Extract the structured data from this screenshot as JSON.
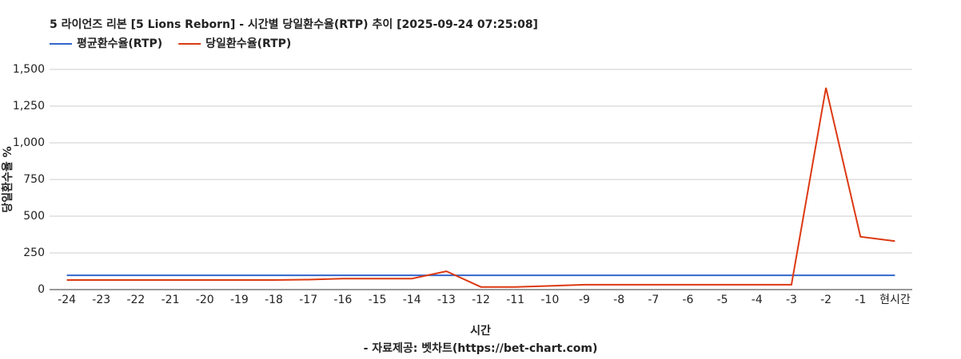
{
  "chart_data": {
    "type": "line",
    "title": "5 라이언즈 리본 [5 Lions Reborn] - 시간별 당일환수율(RTP) 추이 [2025-09-24 07:25:08]",
    "categories": [
      "-24",
      "-23",
      "-22",
      "-21",
      "-20",
      "-19",
      "-18",
      "-17",
      "-16",
      "-15",
      "-14",
      "-13",
      "-12",
      "-11",
      "-10",
      "-9",
      "-8",
      "-7",
      "-6",
      "-5",
      "-4",
      "-3",
      "-2",
      "-1",
      "현시간"
    ],
    "series": [
      {
        "name": "평균환수율(RTP)",
        "color": "#3366cc",
        "values": [
          97,
          97,
          97,
          97,
          97,
          97,
          97,
          97,
          97,
          97,
          97,
          97,
          97,
          97,
          97,
          97,
          97,
          97,
          97,
          97,
          97,
          97,
          97,
          97,
          97
        ]
      },
      {
        "name": "당일환수율(RTP)",
        "color": "#dc3912",
        "values": [
          65,
          65,
          65,
          65,
          65,
          65,
          65,
          68,
          75,
          75,
          75,
          125,
          18,
          18,
          25,
          33,
          33,
          33,
          33,
          33,
          33,
          33,
          1375,
          360,
          330
        ]
      }
    ],
    "ylim": [
      0,
      1500
    ],
    "yticks": [
      0,
      250,
      500,
      750,
      {
        "value": 1000,
        "label": "1,000"
      },
      {
        "value": 1250,
        "label": "1,250"
      },
      {
        "value": 1500,
        "label": "1,500"
      }
    ],
    "grid": true,
    "x_label": "시간",
    "y_label": "당일환수율 %",
    "source": "- 자료제공: 벳차트(https://bet-chart.com)"
  }
}
